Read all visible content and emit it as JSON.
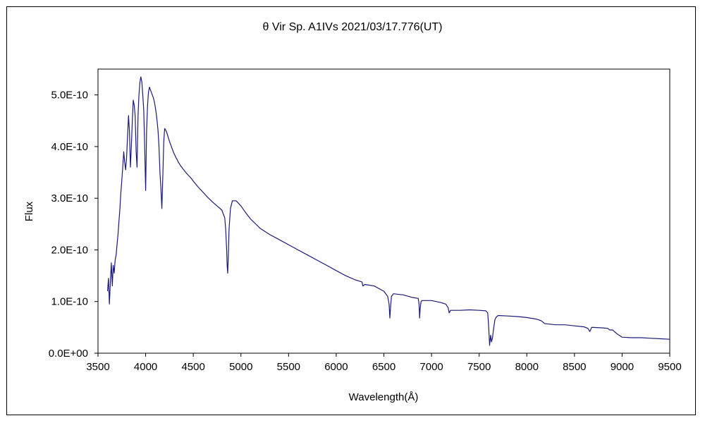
{
  "chart_data": {
    "type": "line",
    "title": "θ Vir   Sp. A1IVs   2021/03/17.776(UT)",
    "xlabel": "Wavelength(Å)",
    "ylabel": "Flux",
    "xlim": [
      3500,
      9500
    ],
    "ylim": [
      0,
      5.5e-10
    ],
    "x_ticks": [
      3500,
      4000,
      4500,
      5000,
      5500,
      6000,
      6500,
      7000,
      7500,
      8000,
      8500,
      9000,
      9500
    ],
    "x_tick_labels": [
      "3500",
      "4000",
      "4500",
      "5000",
      "5500",
      "6000",
      "6500",
      "7000",
      "7500",
      "8000",
      "8500",
      "9000",
      "9500"
    ],
    "y_ticks": [
      0,
      1e-10,
      2e-10,
      3e-10,
      4e-10,
      5e-10
    ],
    "y_tick_labels": [
      "0.0E+00",
      "1.0E-10",
      "2.0E-10",
      "3.0E-10",
      "4.0E-10",
      "5.0E-10"
    ],
    "grid": false,
    "line_color": "#1a1a7a",
    "series": [
      {
        "x": [
          3600,
          3610,
          3620,
          3630,
          3640,
          3650,
          3660,
          3670,
          3680,
          3690,
          3700,
          3710,
          3720,
          3730,
          3740,
          3750,
          3760,
          3770,
          3780,
          3790,
          3800,
          3810,
          3820,
          3830,
          3840,
          3850,
          3860,
          3870,
          3880,
          3890,
          3900,
          3910,
          3920,
          3930,
          3940,
          3950,
          3960,
          3970,
          3980,
          3990,
          4000,
          4010,
          4020,
          4030,
          4040,
          4050,
          4060,
          4070,
          4080,
          4090,
          4100,
          4110,
          4120,
          4130,
          4140,
          4150,
          4160,
          4170,
          4180,
          4190,
          4200,
          4210,
          4220,
          4230,
          4240,
          4250,
          4260,
          4270,
          4280,
          4290,
          4300,
          4310,
          4320,
          4330,
          4340,
          4350,
          4360,
          4370,
          4380,
          4390,
          4400,
          4420,
          4450,
          4480,
          4500,
          4550,
          4600,
          4650,
          4700,
          4750,
          4800,
          4830,
          4840,
          4850,
          4855,
          4861,
          4867,
          4875,
          4890,
          4910,
          4950,
          5000,
          5050,
          5100,
          5200,
          5300,
          5400,
          5500,
          5600,
          5700,
          5800,
          5900,
          6000,
          6100,
          6200,
          6270,
          6280,
          6300,
          6400,
          6500,
          6540,
          6555,
          6563,
          6570,
          6580,
          6600,
          6700,
          6800,
          6860,
          6869,
          6875,
          6880,
          6890,
          6900,
          7000,
          7100,
          7150,
          7175,
          7185,
          7200,
          7300,
          7400,
          7500,
          7570,
          7590,
          7600,
          7610,
          7620,
          7630,
          7640,
          7650,
          7665,
          7680,
          7700,
          7800,
          7900,
          8000,
          8100,
          8150,
          8190,
          8200,
          8300,
          8400,
          8500,
          8600,
          8640,
          8662,
          8680,
          8700,
          8800,
          8850,
          8870,
          8900,
          8950,
          9000,
          9100,
          9200,
          9300,
          9400,
          9500
        ],
        "values": [
          1.2e-10,
          1.45e-10,
          9.5e-11,
          1.4e-10,
          1.75e-10,
          1.3e-10,
          1.7e-10,
          1.55e-10,
          1.8e-10,
          1.9e-10,
          2.1e-10,
          2.3e-10,
          2.55e-10,
          2.8e-10,
          3.1e-10,
          3.35e-10,
          3.6e-10,
          3.9e-10,
          3.7e-10,
          3.55e-10,
          3.8e-10,
          4.2e-10,
          4.6e-10,
          4.3e-10,
          3.6e-10,
          4e-10,
          4.5e-10,
          4.9e-10,
          4.8e-10,
          4.6e-10,
          3.9e-10,
          3.6e-10,
          4.6e-10,
          5e-10,
          5.25e-10,
          5.35e-10,
          5.25e-10,
          5e-10,
          4.7e-10,
          4e-10,
          3.15e-10,
          4.3e-10,
          4.8e-10,
          5.05e-10,
          5.15e-10,
          5.1e-10,
          5.05e-10,
          5e-10,
          4.95e-10,
          4.88e-10,
          4.78e-10,
          4.65e-10,
          4.5e-10,
          4.3e-10,
          4e-10,
          3.5e-10,
          3.2e-10,
          2.8e-10,
          3.4e-10,
          4.1e-10,
          4.35e-10,
          4.32e-10,
          4.28e-10,
          4.22e-10,
          4.16e-10,
          4.1e-10,
          4.05e-10,
          4e-10,
          3.95e-10,
          3.9e-10,
          3.86e-10,
          3.82e-10,
          3.78e-10,
          3.75e-10,
          3.71e-10,
          3.68e-10,
          3.65e-10,
          3.62e-10,
          3.6e-10,
          3.57e-10,
          3.55e-10,
          3.5e-10,
          3.44e-10,
          3.38e-10,
          3.33e-10,
          3.22e-10,
          3.12e-10,
          3.02e-10,
          2.93e-10,
          2.85e-10,
          2.77e-10,
          2.62e-10,
          2.4e-10,
          2e-10,
          1.7e-10,
          1.55e-10,
          1.85e-10,
          2.4e-10,
          2.8e-10,
          2.95e-10,
          2.95e-10,
          2.85e-10,
          2.72e-10,
          2.6e-10,
          2.42e-10,
          2.3e-10,
          2.2e-10,
          2.1e-10,
          2e-10,
          1.9e-10,
          1.8e-10,
          1.7e-10,
          1.6e-10,
          1.5e-10,
          1.42e-10,
          1.38e-10,
          1.3e-10,
          1.33e-10,
          1.3e-10,
          1.2e-10,
          1.1e-10,
          9.5e-11,
          6.8e-11,
          9e-11,
          1.1e-10,
          1.15e-10,
          1.13e-10,
          1.08e-10,
          1.06e-10,
          9.5e-11,
          6.8e-11,
          8.5e-11,
          1e-10,
          1.02e-10,
          1.02e-10,
          9.8e-11,
          9.5e-11,
          8.8e-11,
          7.8e-11,
          8.3e-11,
          8.3e-11,
          8.4e-11,
          8.3e-11,
          8.2e-11,
          7.8e-11,
          5e-11,
          1.5e-11,
          3.5e-11,
          2.2e-11,
          3e-11,
          4.5e-11,
          6.5e-11,
          7e-11,
          7.3e-11,
          7.2e-11,
          7.1e-11,
          6.9e-11,
          6.6e-11,
          6.3e-11,
          5.7e-11,
          5.7e-11,
          5.5e-11,
          5.5e-11,
          5.3e-11,
          5.1e-11,
          4.8e-11,
          4.2e-11,
          5e-11,
          5e-11,
          4.9e-11,
          4.8e-11,
          4.5e-11,
          4.5e-11,
          3.7e-11,
          3.1e-11,
          3e-11,
          3e-11,
          2.9e-11,
          2.8e-11,
          2.7e-11
        ]
      }
    ]
  }
}
